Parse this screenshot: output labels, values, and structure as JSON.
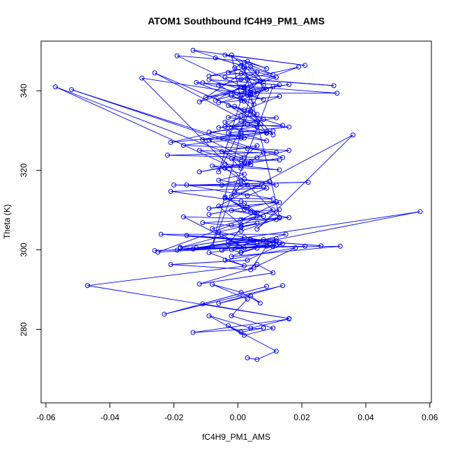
{
  "chart_data": {
    "type": "line",
    "title": "ATOM1 Southbound fC4H9_PM1_AMS",
    "xlabel": "fC4H9_PM1_AMS",
    "ylabel": "Theta (K)",
    "xlim": [
      -0.0615,
      0.0605
    ],
    "ylim": [
      261.5,
      352.5
    ],
    "x_ticks": [
      -0.06,
      -0.04,
      -0.02,
      0.0,
      0.02,
      0.04,
      0.06
    ],
    "x_tick_labels": [
      "-0.06",
      "-0.04",
      "-0.02",
      "0.00",
      "0.02",
      "0.04",
      "0.06"
    ],
    "y_ticks": [
      280,
      300,
      320,
      340
    ],
    "y_tick_labels": [
      "280",
      "300",
      "320",
      "340"
    ],
    "grid": false,
    "marker": "open-circle",
    "series": [
      {
        "color": "#0000ff",
        "x": [
          0.003,
          0.006,
          0.012,
          -0.003,
          0.001,
          0.008,
          -0.014,
          0.016,
          0.004,
          -0.009,
          0.002,
          0.011,
          -0.002,
          0.003,
          -0.008,
          0.001,
          0.007,
          0.004,
          -0.006,
          0.014,
          -0.023,
          0.009,
          -0.011,
          0.016,
          -0.047,
          0.006,
          0.011,
          -0.012,
          0.005,
          0.018,
          -0.004,
          0.002,
          -0.009,
          0.014,
          0.003,
          -0.021,
          0.004,
          0.009,
          -0.014,
          0.011,
          -0.026,
          0.021,
          -0.018,
          0.032,
          -0.002,
          0.001,
          0.012,
          -0.016,
          0.026,
          -0.024,
          0.015,
          -0.005,
          0.008,
          -0.019,
          0.012,
          -0.003,
          0.006,
          0.057,
          -0.018,
          0.001,
          0.013,
          -0.002,
          -0.025,
          0.012,
          -0.003,
          0.001,
          0.012,
          -0.017,
          0.002,
          -0.008,
          0.013,
          0.006,
          0.036,
          -0.006,
          0.001,
          0.011,
          0.004,
          -0.002,
          0.008,
          0.001,
          0.013,
          -0.009,
          0.002,
          0.006,
          -0.004,
          0.011,
          -0.001,
          0.003,
          -0.005,
          0.002,
          0.012,
          -0.02,
          0.008,
          -0.006,
          0.002,
          -0.008,
          0.013,
          -0.004,
          -0.057,
          0.004,
          -0.012,
          0.014,
          -0.052,
          0.003,
          0.012,
          -0.022,
          0.006,
          0.016,
          -0.017,
          0.002,
          -0.011,
          0.001,
          0.009,
          -0.009,
          0.006,
          -0.026,
          0.008,
          0.014,
          -0.004,
          0.001,
          0.012,
          -0.006,
          0.003,
          0.011,
          0.004,
          -0.003,
          0.006,
          -0.001,
          0.004,
          0.009,
          -0.002,
          0.001,
          0.007,
          -0.003,
          0.002,
          0.013,
          -0.006,
          0.003,
          0.005,
          -0.002,
          0.009,
          0.001,
          -0.007,
          0.004,
          0.016,
          -0.01,
          0.002,
          0.012,
          -0.012,
          0.001,
          0.008,
          -0.006,
          0.003,
          0.03,
          -0.004,
          0.001,
          0.006,
          -0.009,
          0.002,
          0.012,
          -0.003,
          0.004,
          0.008,
          -0.001,
          0.002,
          0.011,
          -0.007,
          0.001,
          0.006,
          -0.019,
          0.003,
          0.009,
          -0.004,
          0.021,
          -0.014,
          0.002,
          0.013,
          -0.03,
          0.004,
          0.008,
          -0.011,
          0.002,
          0.019,
          -0.006,
          0.001,
          0.013,
          -0.009,
          0.003,
          0.007,
          -0.002,
          0.001,
          0.011,
          -0.008,
          0.004,
          0.031,
          -0.013,
          0.002,
          0.006,
          -0.004,
          0.001,
          0.009,
          -0.021,
          0.003,
          0.016,
          -0.003,
          0.001,
          0.011,
          -0.009,
          0.002,
          0.006,
          -0.005,
          0.001,
          0.013,
          -0.002,
          0.001,
          0.008,
          -0.012,
          0.002,
          0.004,
          -0.004,
          0.001,
          0.01,
          -0.002,
          0.001,
          0.022,
          -0.016,
          0.003,
          0.009,
          -0.021,
          0.001,
          0.012,
          -0.009,
          0.003,
          0.006,
          -0.004,
          0.002,
          0.016,
          -0.011,
          0.001,
          0.006,
          -0.006,
          0.002,
          0.013,
          -0.013,
          0.004,
          0.01,
          -0.002,
          0.001,
          0.006
        ],
        "y": [
          272.8,
          272.4,
          274.5,
          280.9,
          279.3,
          280.3,
          279.2,
          282.6,
          280.3,
          283.4,
          278.5,
          280.3,
          283.4,
          287.6,
          291.3,
          289.3,
          286.6,
          288.4,
          286.5,
          291.0,
          283.8,
          290.8,
          286.4,
          282.7,
          291.0,
          296.3,
          294.2,
          291.4,
          295.5,
          300.5,
          297.4,
          296.0,
          299.3,
          301.5,
          297.4,
          296.3,
          295.0,
          300.9,
          300.2,
          300.8,
          299.8,
          300.9,
          300.4,
          300.9,
          298.3,
          299.4,
          302.2,
          303.6,
          301.0,
          303.9,
          303.9,
          299.9,
          302.6,
          299.9,
          302.8,
          302.1,
          301.6,
          309.6,
          300.6,
          304.7,
          308.0,
          306.2,
          299.4,
          301.1,
          301.3,
          305.6,
          307.6,
          308.3,
          300.5,
          305.3,
          310.1,
          305.2,
          328.9,
          311.0,
          306.3,
          310.1,
          309.4,
          309.9,
          308.4,
          307.6,
          311.9,
          310.4,
          311.7,
          309.4,
          313.0,
          312.8,
          314.5,
          316.3,
          316.3,
          317.8,
          316.3,
          316.3,
          315.8,
          317.5,
          319.0,
          321.1,
          320.1,
          321.6,
          341.0,
          322.1,
          319.6,
          323.2,
          340.3,
          325.5,
          324.5,
          323.8,
          323.2,
          325.0,
          326.3,
          328.1,
          327.7,
          329.3,
          327.4,
          329.6,
          330.9,
          344.5,
          332.8,
          331.3,
          331.0,
          333.7,
          333.2,
          330.7,
          331.5,
          328.9,
          335.0,
          333.3,
          332.3,
          336.1,
          334.7,
          329.3,
          330.7,
          332.4,
          331.7,
          336.3,
          335.2,
          338.6,
          337.0,
          339.0,
          336.6,
          338.8,
          340.4,
          341.0,
          337.6,
          340.1,
          341.6,
          338.3,
          340.8,
          343.4,
          337.2,
          344.3,
          341.4,
          319.6,
          342.9,
          341.3,
          343.4,
          342.9,
          344.7,
          343.7,
          345.7,
          343.4,
          344.6,
          346.1,
          342.3,
          345.8,
          347.1,
          344.1,
          348.3,
          346.4,
          339.3,
          348.8,
          347.4,
          345.6,
          349.0,
          346.4,
          350.2,
          346.1,
          308.2,
          343.2,
          339.0,
          337.8,
          342.0,
          341.0,
          346.0,
          341.4,
          338.4,
          341.5,
          342.8,
          339.9,
          342.5,
          349.0,
          337.6,
          341.1,
          300.9,
          339.4,
          339.4,
          342.1,
          337.4,
          334.1,
          332.1,
          329.7,
          329.6,
          327.0,
          331.5,
          330.9,
          329.4,
          328.1,
          329.9,
          327.6,
          323.3,
          326.2,
          324.7,
          322.2,
          322.6,
          322.9,
          320.5,
          324.4,
          325.0,
          321.9,
          321.4,
          320.5,
          317.5,
          317.1,
          313.4,
          316.6,
          317.0,
          316.3,
          313.6,
          315.5,
          314.7,
          312.2,
          312.1,
          308.9,
          310.7,
          308.6,
          313.3,
          310.2,
          308.1,
          306.8,
          305.8,
          306.7,
          304.5,
          303.1,
          301.8,
          300.5,
          302.6,
          301.5,
          300.0,
          299.3,
          300.4
        ]
      }
    ]
  }
}
